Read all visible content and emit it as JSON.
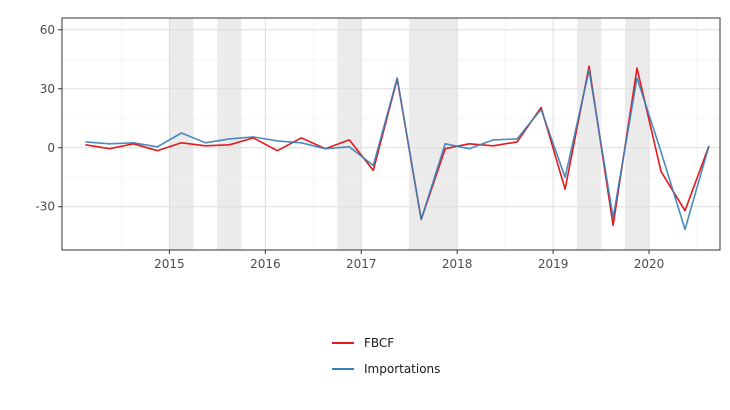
{
  "chart_data": {
    "type": "line",
    "title": "",
    "xlabel": "",
    "ylabel": "",
    "x": [
      2014.125,
      2014.375,
      2014.625,
      2014.875,
      2015.125,
      2015.375,
      2015.625,
      2015.875,
      2016.125,
      2016.375,
      2016.625,
      2016.875,
      2017.125,
      2017.375,
      2017.625,
      2017.875,
      2018.125,
      2018.375,
      2018.625,
      2018.875,
      2019.125,
      2019.375,
      2019.625,
      2019.875,
      2020.125,
      2020.375,
      2020.625
    ],
    "xlim": [
      2013.88,
      2020.74
    ],
    "ylim": [
      -52,
      66
    ],
    "x_ticks": [
      2015,
      2016,
      2017,
      2018,
      2019,
      2020
    ],
    "x_tick_labels": [
      "2015",
      "2016",
      "2017",
      "2018",
      "2019",
      "2020"
    ],
    "y_ticks": [
      -30,
      0,
      30,
      60
    ],
    "y_tick_labels": [
      "-30",
      "0",
      "30",
      "60"
    ],
    "grid": true,
    "legend_position": "bottom",
    "shaded_periods": [
      [
        2015.0,
        2015.25
      ],
      [
        2015.5,
        2015.75
      ],
      [
        2016.75,
        2017.0
      ],
      [
        2017.5,
        2018.0
      ],
      [
        2019.25,
        2019.5
      ],
      [
        2019.75,
        2020.0
      ]
    ],
    "series": [
      {
        "name": "FBCF",
        "color": "#e41a1c",
        "values": [
          1.5,
          -0.5,
          2,
          -1.5,
          2.5,
          1,
          1.5,
          5,
          -1.5,
          5,
          -0.5,
          4,
          -11.5,
          35,
          -36.5,
          -0.5,
          2,
          1,
          3,
          20.5,
          -21,
          41.5,
          -39.5,
          40.5,
          -12,
          -32,
          1
        ]
      },
      {
        "name": "Importations",
        "color": "#377eb8",
        "values": [
          3,
          2,
          2.5,
          0.5,
          7.5,
          2.5,
          4.5,
          5.5,
          3.5,
          2.5,
          -0.5,
          0.5,
          -9,
          35.5,
          -36.5,
          2,
          -0.5,
          4,
          4.5,
          19.5,
          -15,
          39.5,
          -35.5,
          35.5,
          -2,
          -41.5,
          1
        ]
      }
    ]
  }
}
